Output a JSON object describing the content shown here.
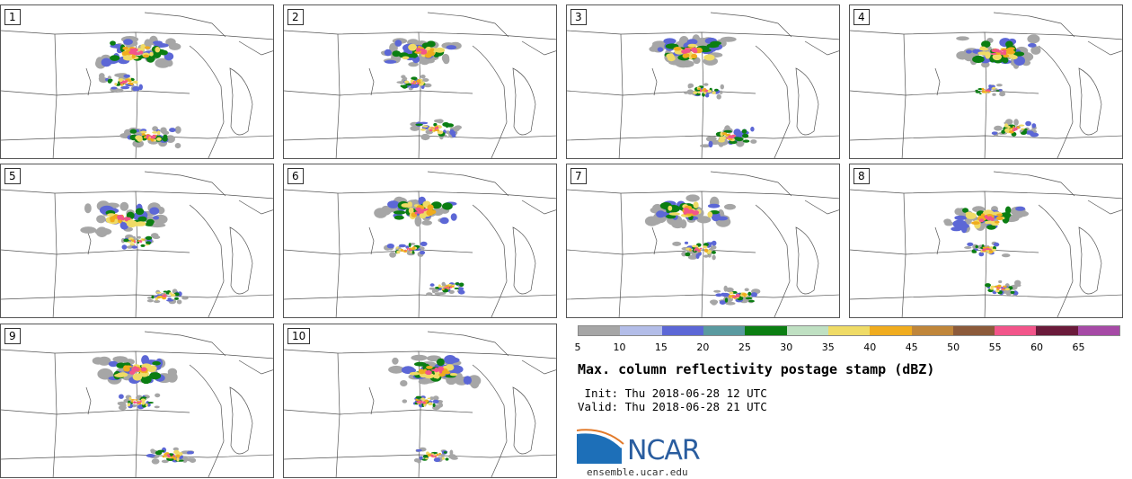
{
  "panels": [
    {
      "label": "1",
      "members": [
        [
          0.5,
          0.3,
          1.0
        ],
        [
          0.45,
          0.5,
          0.6
        ],
        [
          0.55,
          0.85,
          0.7
        ]
      ]
    },
    {
      "label": "2",
      "members": [
        [
          0.5,
          0.3,
          1.0
        ],
        [
          0.48,
          0.5,
          0.5
        ],
        [
          0.55,
          0.8,
          0.6
        ]
      ]
    },
    {
      "label": "3",
      "members": [
        [
          0.45,
          0.3,
          1.0
        ],
        [
          0.5,
          0.55,
          0.5
        ],
        [
          0.6,
          0.85,
          0.7
        ]
      ]
    },
    {
      "label": "4",
      "members": [
        [
          0.55,
          0.3,
          1.0
        ],
        [
          0.5,
          0.55,
          0.4
        ],
        [
          0.6,
          0.8,
          0.6
        ]
      ]
    },
    {
      "label": "5",
      "members": [
        [
          0.45,
          0.35,
          1.0
        ],
        [
          0.5,
          0.5,
          0.5
        ],
        [
          0.6,
          0.85,
          0.5
        ]
      ]
    },
    {
      "label": "6",
      "members": [
        [
          0.5,
          0.3,
          1.0
        ],
        [
          0.45,
          0.55,
          0.5
        ],
        [
          0.6,
          0.8,
          0.5
        ]
      ]
    },
    {
      "label": "7",
      "members": [
        [
          0.45,
          0.3,
          1.0
        ],
        [
          0.48,
          0.55,
          0.6
        ],
        [
          0.62,
          0.85,
          0.6
        ]
      ]
    },
    {
      "label": "8",
      "members": [
        [
          0.5,
          0.35,
          1.0
        ],
        [
          0.5,
          0.55,
          0.5
        ],
        [
          0.55,
          0.8,
          0.5
        ]
      ]
    },
    {
      "label": "9",
      "members": [
        [
          0.5,
          0.3,
          1.0
        ],
        [
          0.5,
          0.5,
          0.5
        ],
        [
          0.62,
          0.85,
          0.6
        ]
      ]
    },
    {
      "label": "10",
      "members": [
        [
          0.55,
          0.3,
          1.0
        ],
        [
          0.5,
          0.5,
          0.5
        ],
        [
          0.55,
          0.85,
          0.5
        ]
      ]
    }
  ],
  "colorbar": {
    "ticks": [
      "5",
      "10",
      "15",
      "20",
      "25",
      "30",
      "35",
      "40",
      "45",
      "50",
      "55",
      "60",
      "65"
    ],
    "colors": [
      "#a6a6a6",
      "#b3bde8",
      "#5c67d6",
      "#5a9aa0",
      "#0b7e12",
      "#bfe0c2",
      "#efdb66",
      "#f0ac1e",
      "#c0863a",
      "#8c5a3a",
      "#f2558a",
      "#6a1a3a",
      "#a64aa6"
    ]
  },
  "title": "Max. column reflectivity postage stamp (dBZ)",
  "init": " Init: Thu 2018-06-28 12 UTC",
  "valid": "Valid: Thu 2018-06-28 21 UTC",
  "logo": {
    "text": "NCAR",
    "site": "ensemble.ucar.edu"
  }
}
